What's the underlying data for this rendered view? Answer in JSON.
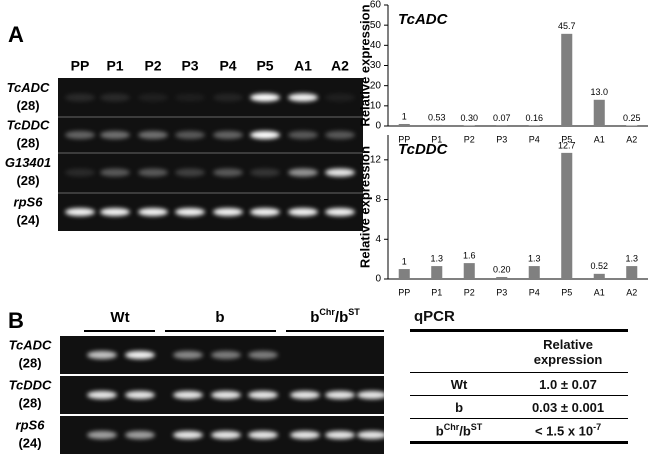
{
  "chart_data": [
    {
      "type": "bar",
      "title": "TcADC",
      "ylabel": "Relative expression",
      "categories": [
        "PP",
        "P1",
        "P2",
        "P3",
        "P4",
        "P5",
        "A1",
        "A2"
      ],
      "values": [
        1,
        0.53,
        0.3,
        0.07,
        0.16,
        45.7,
        13.0,
        0.25
      ],
      "value_labels": [
        "1",
        "0.53",
        "0.30",
        "0.07",
        "0.16",
        "45.7",
        "13.0",
        "0.25"
      ],
      "color": "#808080",
      "ylim": [
        0,
        60
      ],
      "yticks": [
        0,
        10,
        20,
        30,
        40,
        50,
        60
      ]
    },
    {
      "type": "bar",
      "title": "TcDDC",
      "ylabel": "Relative expression",
      "categories": [
        "PP",
        "P1",
        "P2",
        "P3",
        "P4",
        "P5",
        "A1",
        "A2"
      ],
      "values": [
        1,
        1.3,
        1.6,
        0.2,
        1.3,
        12.7,
        0.52,
        1.3
      ],
      "value_labels": [
        "1",
        "1.3",
        "1.6",
        "0.20",
        "1.3",
        "12.7",
        "0.52",
        "1.3"
      ],
      "color": "#808080",
      "ylim": [
        0,
        14.5
      ],
      "yticks": [
        0,
        4,
        8,
        12
      ]
    }
  ],
  "panel_a": {
    "label": "A",
    "lanes": [
      "PP",
      "P1",
      "P2",
      "P3",
      "P4",
      "P5",
      "A1",
      "A2"
    ],
    "rows": [
      {
        "gene": "TcADC",
        "cycles": "(28)"
      },
      {
        "gene": "TcDDC",
        "cycles": "(28)"
      },
      {
        "gene": "G13401",
        "cycles": "(28)"
      },
      {
        "gene": "rpS6",
        "cycles": "(24)"
      }
    ]
  },
  "panel_b": {
    "label": "B",
    "groups": [
      [
        {
          "t": "Wt"
        }
      ],
      [
        {
          "t": "b"
        }
      ],
      [
        {
          "t": "b"
        },
        {
          "sup": "Chr"
        },
        {
          "t": "/b"
        },
        {
          "sup": "ST"
        }
      ]
    ],
    "rows": [
      {
        "gene": "TcADC",
        "cycles": "(28)"
      },
      {
        "gene": "TcDDC",
        "cycles": "(28)"
      },
      {
        "gene": "rpS6",
        "cycles": "(24)"
      }
    ]
  },
  "table": {
    "title": "qPCR",
    "header": "Relative expression",
    "rows": [
      [
        [
          {
            "t": "Wt"
          }
        ],
        [
          {
            "t": "1.0 ± 0.07"
          }
        ]
      ],
      [
        [
          {
            "t": "b"
          }
        ],
        [
          {
            "t": "0.03 ± 0.001"
          }
        ]
      ],
      [
        [
          {
            "t": "b"
          },
          {
            "sup": "Chr"
          },
          {
            "t": "/b"
          },
          {
            "sup": "ST"
          }
        ],
        [
          {
            "t": "< 1.5 x 10"
          },
          {
            "sup": "-7"
          }
        ]
      ]
    ]
  }
}
